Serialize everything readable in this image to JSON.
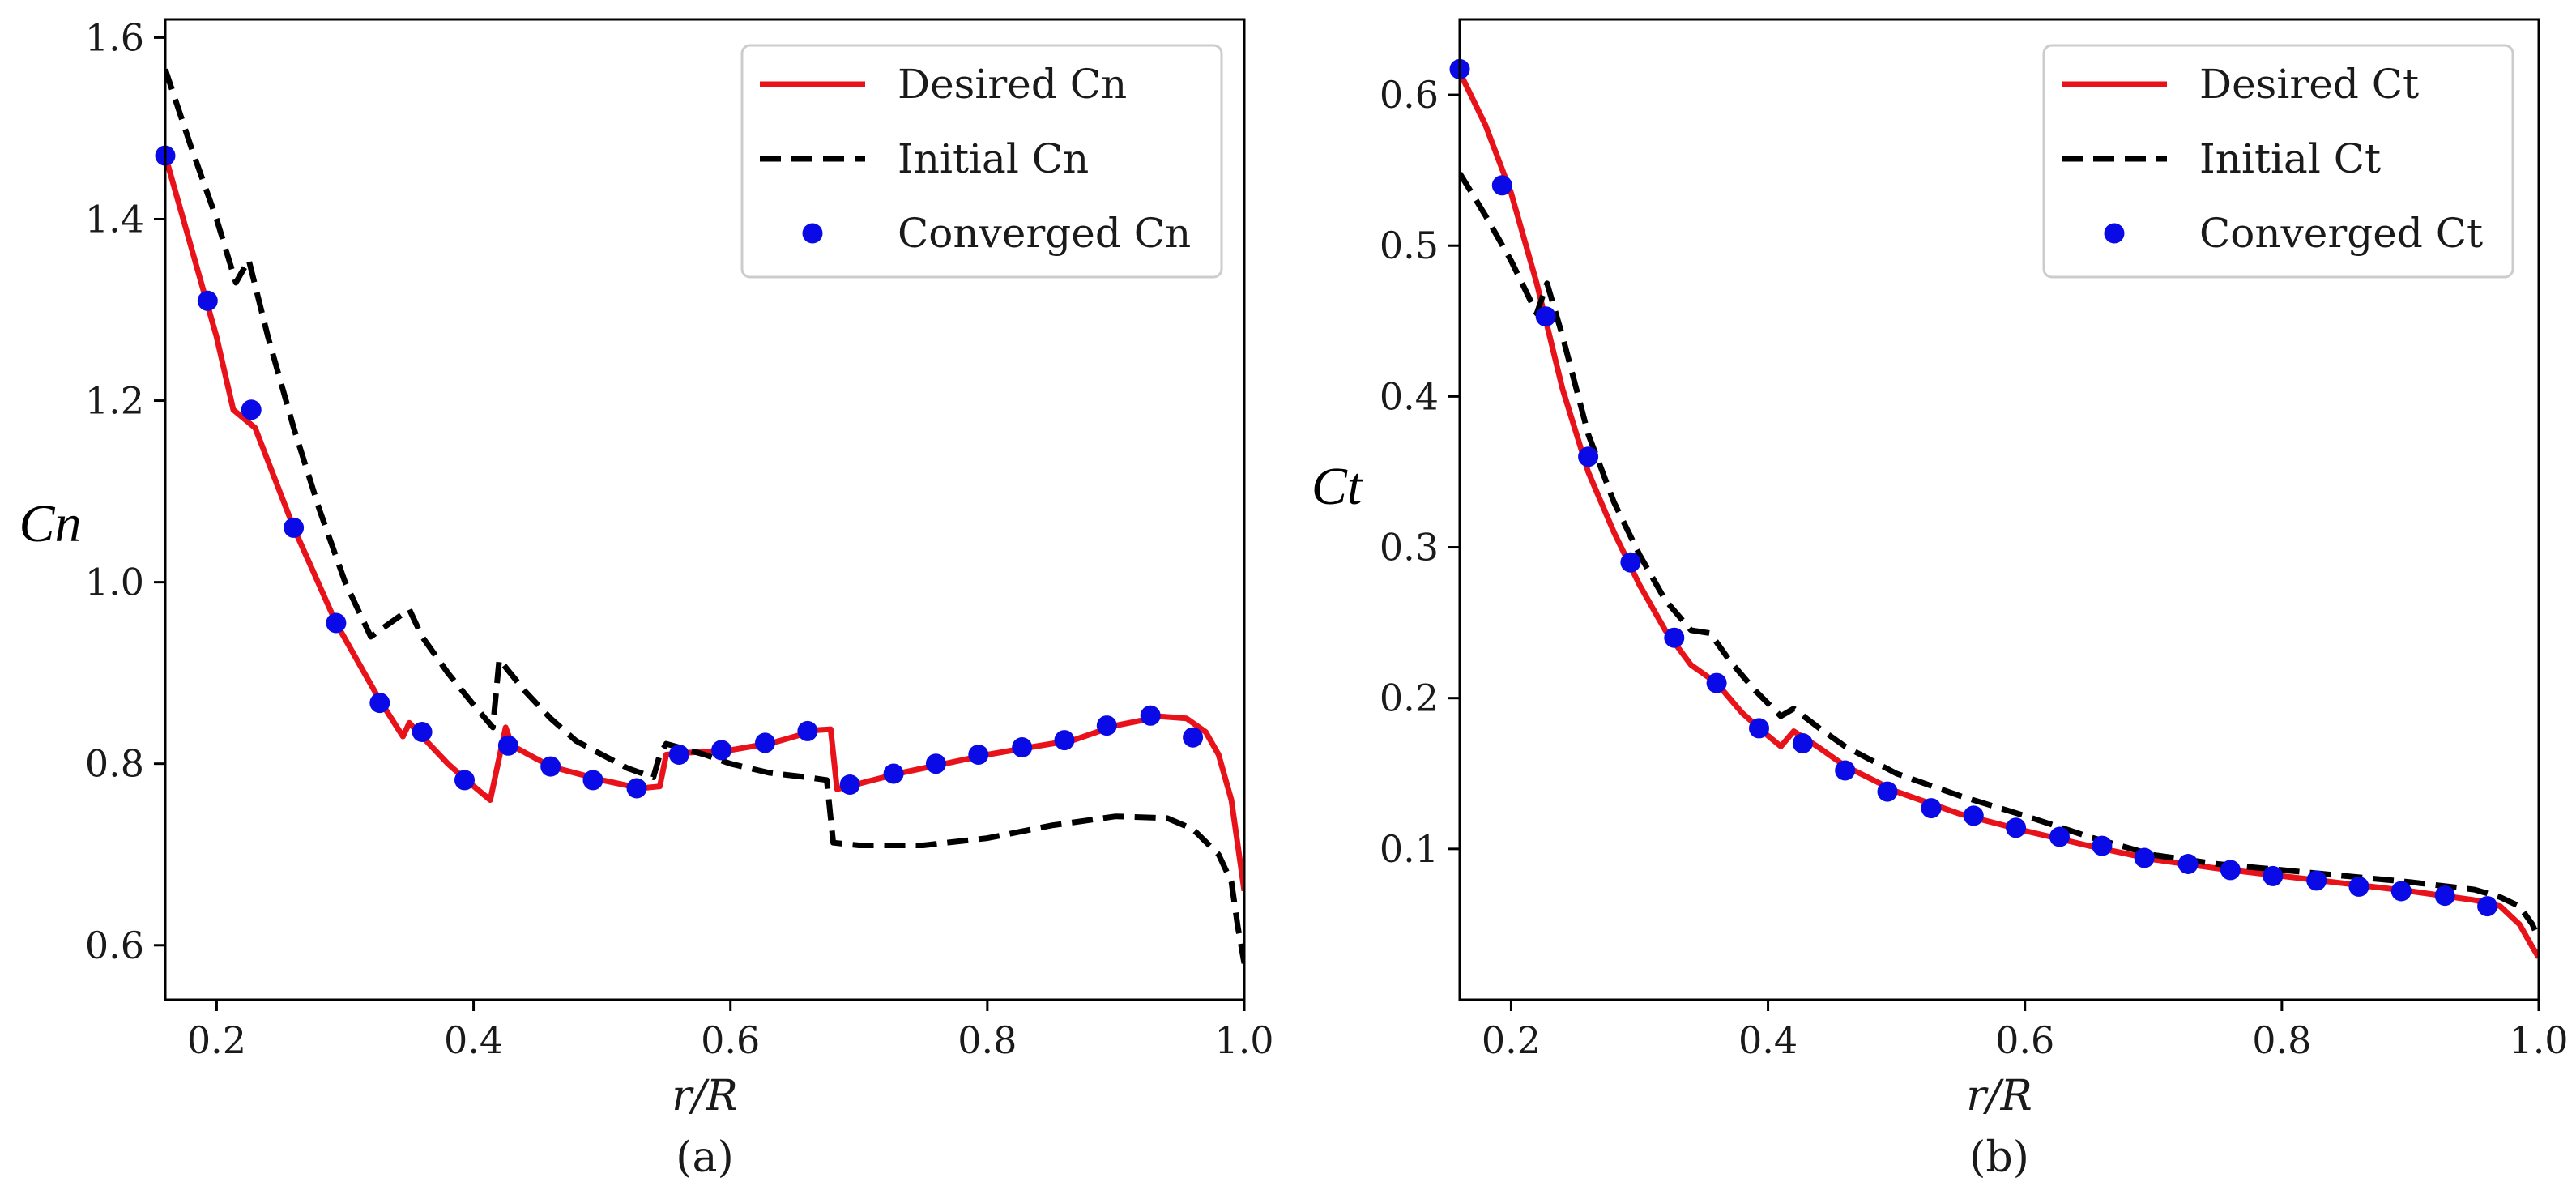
{
  "chart_data": [
    {
      "type": "line",
      "panel": "a",
      "caption": "(a)",
      "xlabel": "r/R",
      "ylabel": "Cn",
      "xlim": [
        0.16,
        1.0
      ],
      "ylim": [
        0.54,
        1.62
      ],
      "xticks": [
        0.2,
        0.4,
        0.6,
        0.8,
        1.0
      ],
      "xtick_labels": [
        "0.2",
        "0.4",
        "0.6",
        "0.8",
        "1.0"
      ],
      "yticks": [
        0.6,
        0.8,
        1.0,
        1.2,
        1.4,
        1.6
      ],
      "ytick_labels": [
        "0.6",
        "0.8",
        "1.0",
        "1.2",
        "1.4",
        "1.6"
      ],
      "legend_position": "top-right",
      "series": [
        {
          "name": "Desired Cn",
          "style": "solid",
          "color": "#e8121a",
          "x": [
            0.16,
            0.18,
            0.2,
            0.213,
            0.23,
            0.26,
            0.293,
            0.327,
            0.345,
            0.35,
            0.36,
            0.38,
            0.396,
            0.413,
            0.425,
            0.43,
            0.46,
            0.5,
            0.53,
            0.545,
            0.55,
            0.565,
            0.6,
            0.633,
            0.667,
            0.678,
            0.683,
            0.7,
            0.733,
            0.767,
            0.8,
            0.833,
            0.867,
            0.9,
            0.935,
            0.955,
            0.97,
            0.98,
            0.99,
            1.0
          ],
          "y": [
            1.47,
            1.37,
            1.27,
            1.19,
            1.17,
            1.06,
            0.955,
            0.87,
            0.83,
            0.845,
            0.83,
            0.8,
            0.78,
            0.76,
            0.84,
            0.82,
            0.797,
            0.782,
            0.773,
            0.775,
            0.81,
            0.812,
            0.815,
            0.823,
            0.837,
            0.838,
            0.772,
            0.778,
            0.79,
            0.8,
            0.81,
            0.818,
            0.826,
            0.842,
            0.852,
            0.85,
            0.835,
            0.81,
            0.76,
            0.66
          ]
        },
        {
          "name": "Initial Cn",
          "style": "dashed",
          "color": "#000000",
          "x": [
            0.16,
            0.18,
            0.2,
            0.215,
            0.225,
            0.24,
            0.26,
            0.28,
            0.3,
            0.32,
            0.34,
            0.35,
            0.36,
            0.38,
            0.4,
            0.415,
            0.42,
            0.44,
            0.46,
            0.48,
            0.5,
            0.52,
            0.54,
            0.545,
            0.55,
            0.58,
            0.6,
            0.63,
            0.66,
            0.675,
            0.68,
            0.7,
            0.75,
            0.8,
            0.85,
            0.9,
            0.94,
            0.96,
            0.98,
            0.99,
            0.995,
            1.0
          ],
          "y": [
            1.565,
            1.48,
            1.4,
            1.33,
            1.355,
            1.27,
            1.17,
            1.08,
            1.0,
            0.94,
            0.96,
            0.97,
            0.94,
            0.9,
            0.865,
            0.84,
            0.915,
            0.88,
            0.85,
            0.825,
            0.81,
            0.795,
            0.785,
            0.81,
            0.822,
            0.81,
            0.8,
            0.79,
            0.785,
            0.782,
            0.713,
            0.71,
            0.71,
            0.718,
            0.732,
            0.742,
            0.74,
            0.728,
            0.7,
            0.67,
            0.62,
            0.58
          ]
        },
        {
          "name": "Converged Cn",
          "style": "markers",
          "color": "#0a0ae6",
          "x": [
            0.16,
            0.193,
            0.227,
            0.26,
            0.293,
            0.327,
            0.36,
            0.393,
            0.427,
            0.46,
            0.493,
            0.527,
            0.56,
            0.593,
            0.627,
            0.66,
            0.693,
            0.727,
            0.76,
            0.793,
            0.827,
            0.86,
            0.893,
            0.927,
            0.96
          ],
          "y": [
            1.47,
            1.31,
            1.19,
            1.06,
            0.955,
            0.867,
            0.835,
            0.782,
            0.82,
            0.797,
            0.782,
            0.773,
            0.81,
            0.815,
            0.823,
            0.836,
            0.777,
            0.789,
            0.8,
            0.81,
            0.818,
            0.826,
            0.842,
            0.853,
            0.829
          ]
        }
      ]
    },
    {
      "type": "line",
      "panel": "b",
      "caption": "(b)",
      "xlabel": "r/R",
      "ylabel": "Ct",
      "xlim": [
        0.16,
        1.0
      ],
      "ylim": [
        0.0,
        0.65
      ],
      "xticks": [
        0.2,
        0.4,
        0.6,
        0.8,
        1.0
      ],
      "xtick_labels": [
        "0.2",
        "0.4",
        "0.6",
        "0.8",
        "1.0"
      ],
      "yticks": [
        0.1,
        0.2,
        0.3,
        0.4,
        0.5,
        0.6
      ],
      "ytick_labels": [
        "0.1",
        "0.2",
        "0.3",
        "0.4",
        "0.5",
        "0.6"
      ],
      "legend_position": "top-right",
      "series": [
        {
          "name": "Desired Ct",
          "style": "solid",
          "color": "#e8121a",
          "x": [
            0.16,
            0.18,
            0.2,
            0.22,
            0.24,
            0.26,
            0.28,
            0.3,
            0.32,
            0.34,
            0.36,
            0.38,
            0.4,
            0.41,
            0.42,
            0.44,
            0.46,
            0.5,
            0.55,
            0.6,
            0.65,
            0.7,
            0.75,
            0.8,
            0.85,
            0.9,
            0.95,
            0.97,
            0.985,
            0.995,
            1.0
          ],
          "y": [
            0.615,
            0.58,
            0.535,
            0.475,
            0.405,
            0.35,
            0.31,
            0.275,
            0.245,
            0.222,
            0.21,
            0.19,
            0.175,
            0.168,
            0.178,
            0.167,
            0.155,
            0.138,
            0.123,
            0.112,
            0.102,
            0.093,
            0.087,
            0.082,
            0.077,
            0.072,
            0.066,
            0.062,
            0.05,
            0.035,
            0.028
          ]
        },
        {
          "name": "Initial Ct",
          "style": "dashed",
          "color": "#000000",
          "x": [
            0.16,
            0.18,
            0.2,
            0.22,
            0.228,
            0.24,
            0.26,
            0.28,
            0.3,
            0.32,
            0.34,
            0.355,
            0.37,
            0.39,
            0.41,
            0.42,
            0.44,
            0.46,
            0.5,
            0.55,
            0.6,
            0.65,
            0.7,
            0.75,
            0.8,
            0.85,
            0.9,
            0.95,
            0.97,
            0.985,
            0.995,
            1.0
          ],
          "y": [
            0.548,
            0.52,
            0.49,
            0.455,
            0.475,
            0.44,
            0.375,
            0.33,
            0.295,
            0.265,
            0.245,
            0.243,
            0.225,
            0.205,
            0.188,
            0.193,
            0.18,
            0.168,
            0.15,
            0.135,
            0.122,
            0.108,
            0.096,
            0.09,
            0.086,
            0.082,
            0.078,
            0.073,
            0.068,
            0.062,
            0.05,
            0.04
          ]
        },
        {
          "name": "Converged Ct",
          "style": "markers",
          "color": "#0a0ae6",
          "x": [
            0.16,
            0.193,
            0.227,
            0.26,
            0.293,
            0.327,
            0.36,
            0.393,
            0.427,
            0.46,
            0.493,
            0.527,
            0.56,
            0.593,
            0.627,
            0.66,
            0.693,
            0.727,
            0.76,
            0.793,
            0.827,
            0.86,
            0.893,
            0.927,
            0.96
          ],
          "y": [
            0.617,
            0.54,
            0.453,
            0.36,
            0.29,
            0.24,
            0.21,
            0.18,
            0.17,
            0.152,
            0.138,
            0.127,
            0.122,
            0.114,
            0.108,
            0.102,
            0.094,
            0.09,
            0.086,
            0.082,
            0.079,
            0.075,
            0.072,
            0.069,
            0.062
          ]
        }
      ]
    }
  ]
}
